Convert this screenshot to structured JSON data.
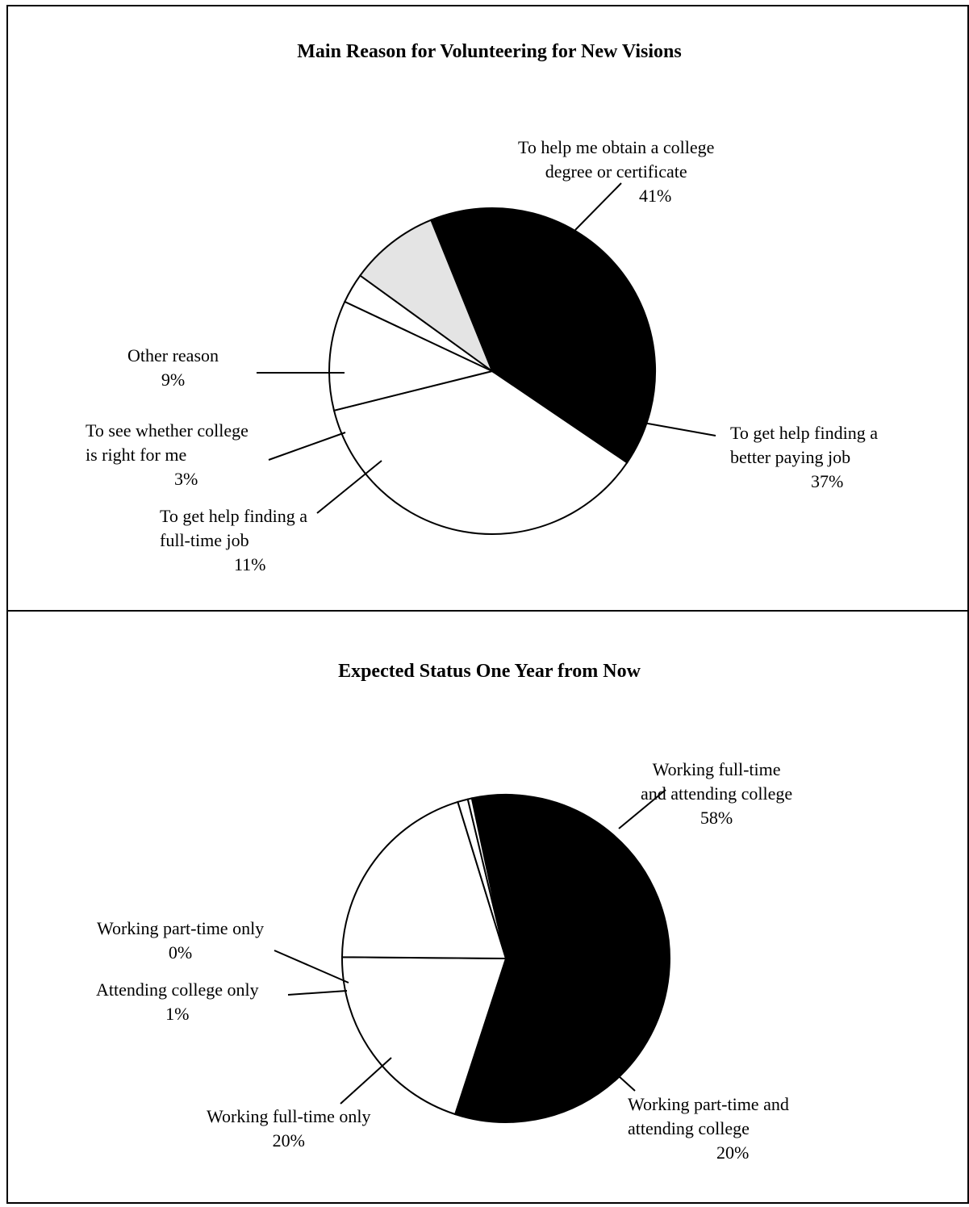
{
  "chart_data": [
    {
      "type": "pie",
      "title": "Main Reason for Volunteering for New Visions",
      "slices": [
        {
          "label_lines": [
            "To help me obtain a college",
            "degree or certificate"
          ],
          "pct_label": "41%",
          "value": 41,
          "color": "#000000"
        },
        {
          "label_lines": [
            "To get help finding a",
            "better paying job"
          ],
          "pct_label": "37%",
          "value": 37,
          "color": "#ffffff"
        },
        {
          "label_lines": [
            "To get help finding a",
            "full-time job"
          ],
          "pct_label": "11%",
          "value": 11,
          "color": "#ffffff"
        },
        {
          "label_lines": [
            "To see whether college",
            "is right for me"
          ],
          "pct_label": "3%",
          "value": 3,
          "color": "#ffffff"
        },
        {
          "label_lines": [
            "Other reason"
          ],
          "pct_label": "9%",
          "value": 9,
          "color": "#e4e4e4"
        }
      ]
    },
    {
      "type": "pie",
      "title": "Expected Status One Year from Now",
      "slices": [
        {
          "label_lines": [
            "Working full-time",
            "and attending college"
          ],
          "pct_label": "58%",
          "value": 58,
          "color": "#000000"
        },
        {
          "label_lines": [
            "Working part-time and",
            "attending college"
          ],
          "pct_label": "20%",
          "value": 20,
          "color": "#ffffff"
        },
        {
          "label_lines": [
            "Working full-time only"
          ],
          "pct_label": "20%",
          "value": 20,
          "color": "#ffffff"
        },
        {
          "label_lines": [
            "Attending college only"
          ],
          "pct_label": "1%",
          "value": 1,
          "color": "#ffffff"
        },
        {
          "label_lines": [
            "Working part-time only"
          ],
          "pct_label": "0%",
          "value": 0.4,
          "color": "#ffffff"
        }
      ]
    }
  ]
}
